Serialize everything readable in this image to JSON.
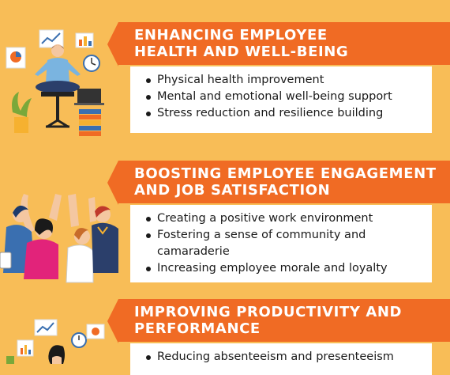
{
  "sections": [
    {
      "title_lines": [
        "ENHANCING EMPLOYEE",
        "HEALTH AND WELL-BEING"
      ],
      "bullets": [
        "Physical health improvement",
        "Mental and emotional well-being support",
        "Stress reduction and resilience building"
      ],
      "illustration": "meditating-person-icon"
    },
    {
      "title_lines": [
        "BOOSTING EMPLOYEE ENGAGEMENT",
        "AND JOB SATISFACTION"
      ],
      "bullets": [
        "Creating a positive work environment",
        "Fostering a sense of community and camaraderie",
        "Increasing employee morale and loyalty"
      ],
      "illustration": "team-high-five-icon"
    },
    {
      "title_lines": [
        "IMPROVING PRODUCTIVITY AND",
        "PERFORMANCE"
      ],
      "bullets": [
        "Reducing absenteeism and presenteeism"
      ],
      "illustration": "worker-at-desk-icon"
    }
  ],
  "colors": {
    "background": "#f8bd57",
    "banner": "#f06b24",
    "card": "#ffffff"
  }
}
